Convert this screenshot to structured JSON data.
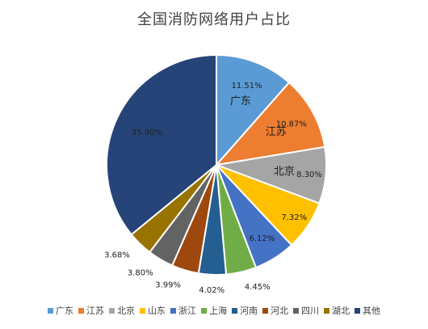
{
  "chart_data": {
    "type": "pie",
    "title": "全国消防网络用户占比",
    "categories": [
      "广东",
      "江苏",
      "北京",
      "山东",
      "浙江",
      "上海",
      "河南",
      "河北",
      "四川",
      "湖北",
      "其他"
    ],
    "values": [
      11.51,
      10.87,
      8.3,
      7.32,
      6.12,
      4.45,
      4.02,
      3.99,
      3.8,
      3.68,
      35.9
    ],
    "value_labels": [
      "11.51%",
      "10.87%",
      "8.30%",
      "7.32%",
      "6.12%",
      "4.45%",
      "4.02%",
      "3.99%",
      "3.80%",
      "3.68%",
      "35.90%"
    ],
    "colors": [
      "#5B9BD5",
      "#ED7D31",
      "#A5A5A5",
      "#FFC000",
      "#4472C4",
      "#70AD47",
      "#255E91",
      "#9E480E",
      "#636363",
      "#997300",
      "#264478"
    ],
    "inside_category_labels": [
      "广东",
      "江苏",
      "北京"
    ],
    "legend_position": "bottom"
  }
}
